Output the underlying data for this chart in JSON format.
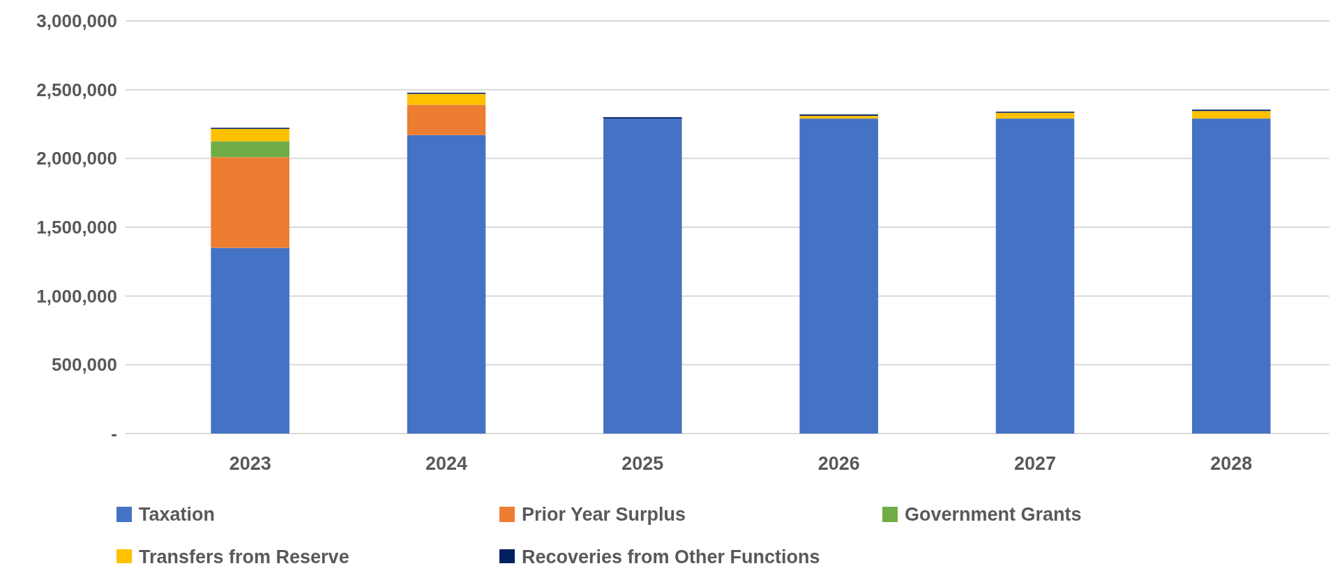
{
  "chart_data": {
    "type": "bar",
    "stacked": true,
    "categories": [
      "2023",
      "2024",
      "2025",
      "2026",
      "2027",
      "2028"
    ],
    "series": [
      {
        "name": "Taxation",
        "color": "#4472c4",
        "values": [
          1350000,
          2170000,
          2290000,
          2290000,
          2290000,
          2290000
        ]
      },
      {
        "name": "Prior Year Surplus",
        "color": "#ed7d31",
        "values": [
          660000,
          220000,
          0,
          0,
          0,
          0
        ]
      },
      {
        "name": "Government Grants",
        "color": "#70ad47",
        "values": [
          115000,
          0,
          0,
          0,
          0,
          0
        ]
      },
      {
        "name": "Transfers from Reserve",
        "color": "#ffc000",
        "values": [
          90000,
          80000,
          0,
          20000,
          42000,
          55000
        ]
      },
      {
        "name": "Recoveries from Other Functions",
        "color": "#002060",
        "values": [
          8000,
          8000,
          10000,
          10000,
          8000,
          10000
        ]
      }
    ],
    "ylim": [
      0,
      3000000
    ],
    "yticks": [
      {
        "value": 0,
        "label": "-"
      },
      {
        "value": 500000,
        "label": "500,000"
      },
      {
        "value": 1000000,
        "label": "1,000,000"
      },
      {
        "value": 1500000,
        "label": "1,500,000"
      },
      {
        "value": 2000000,
        "label": "2,000,000"
      },
      {
        "value": 2500000,
        "label": "2,500,000"
      },
      {
        "value": 3000000,
        "label": "3,000,000"
      }
    ],
    "grid": "y",
    "legend": "bottom"
  }
}
